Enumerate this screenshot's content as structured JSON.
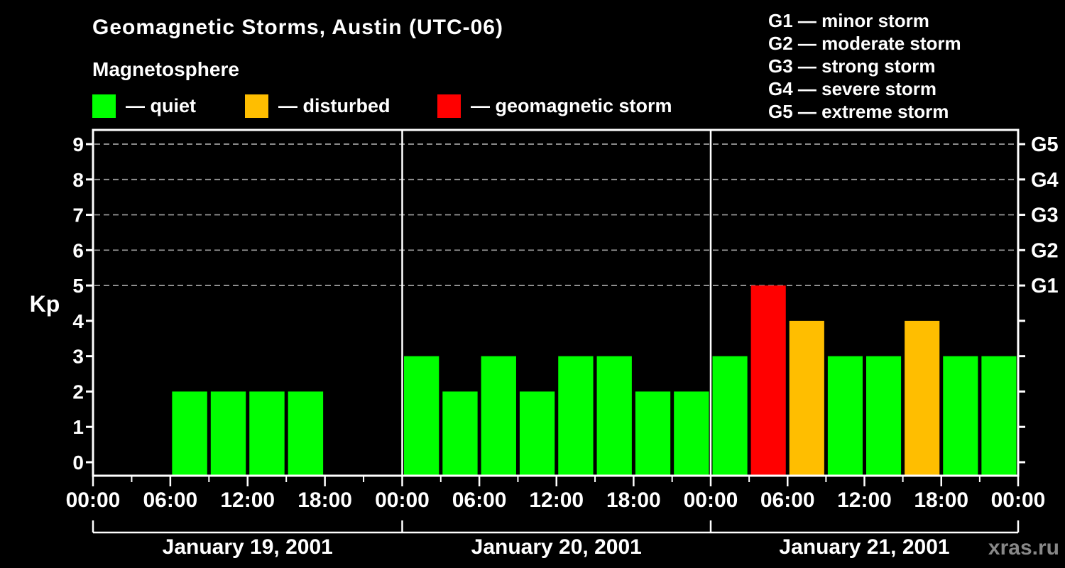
{
  "header": {
    "title": "Geomagnetic Storms, Austin (UTC-06)",
    "subtitle": "Magnetosphere"
  },
  "legend": {
    "items": [
      {
        "name": "quiet",
        "label": "— quiet",
        "color": "#00ff00"
      },
      {
        "name": "disturbed",
        "label": "— disturbed",
        "color": "#ffbe00"
      },
      {
        "name": "storm",
        "label": "— geomagnetic storm",
        "color": "#ff0000"
      }
    ]
  },
  "storm_scale": {
    "items": [
      {
        "label": "G1 — minor storm"
      },
      {
        "label": "G2 — moderate storm"
      },
      {
        "label": "G3 — strong storm"
      },
      {
        "label": "G4 — severe storm"
      },
      {
        "label": "G5 — extreme storm"
      }
    ]
  },
  "watermark": "xras.ru",
  "chart_data": {
    "type": "bar",
    "title": "Geomagnetic Storms, Austin (UTC-06)",
    "ylabel": "Kp",
    "yticks": [
      0,
      1,
      2,
      3,
      4,
      5,
      6,
      7,
      8,
      9
    ],
    "ylim": [
      -0.4,
      9.4
    ],
    "grid_levels": [
      5,
      6,
      7,
      8,
      9
    ],
    "grid_color": "#9e9e9e",
    "right_axis": [
      {
        "kp": 5,
        "label": "G1"
      },
      {
        "kp": 6,
        "label": "G2"
      },
      {
        "kp": 7,
        "label": "G3"
      },
      {
        "kp": 8,
        "label": "G4"
      },
      {
        "kp": 9,
        "label": "G5"
      }
    ],
    "x_tick_labels": [
      "00:00",
      "06:00",
      "12:00",
      "18:00"
    ],
    "x_final_label": "00:00",
    "bin_hours": 3,
    "colors": {
      "quiet": "#00ff00",
      "disturbed": "#ffbe00",
      "storm": "#ff0000"
    },
    "thresholds": {
      "disturbed_min": 4,
      "storm_min": 5
    },
    "days": [
      {
        "date": "January 19, 2001",
        "values": [
          0,
          0,
          2,
          2,
          2,
          2,
          0,
          0
        ]
      },
      {
        "date": "January 20, 2001",
        "values": [
          3,
          2,
          3,
          2,
          3,
          3,
          2,
          2
        ]
      },
      {
        "date": "January 21, 2001",
        "values": [
          3,
          5,
          4,
          3,
          3,
          4,
          3,
          3
        ]
      }
    ]
  }
}
